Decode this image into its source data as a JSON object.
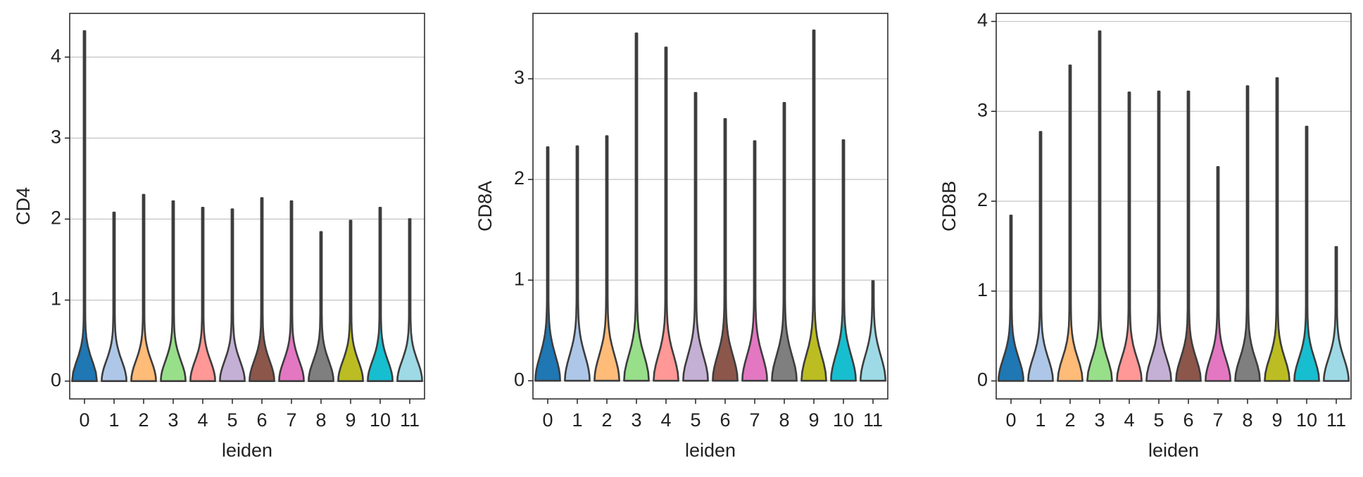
{
  "chart_data": [
    {
      "type": "violin",
      "ylabel": "CD4",
      "xlabel": "leiden",
      "categories": [
        "0",
        "1",
        "2",
        "3",
        "4",
        "5",
        "6",
        "7",
        "8",
        "9",
        "10",
        "11"
      ],
      "values": [
        4.32,
        2.08,
        2.3,
        2.22,
        2.14,
        2.12,
        2.26,
        2.22,
        1.84,
        1.98,
        2.14,
        2.0
      ],
      "colors": [
        "#1f77b4",
        "#aec7e8",
        "#ffbb78",
        "#98df8a",
        "#ff9896",
        "#c5b0d5",
        "#8c564b",
        "#e377c2",
        "#7f7f7f",
        "#bcbd22",
        "#17becf",
        "#9edae5"
      ],
      "ylim": [
        -0.22,
        4.54
      ],
      "yticks": [
        0,
        1,
        2,
        3,
        4
      ],
      "grid": true
    },
    {
      "type": "violin",
      "ylabel": "CD8A",
      "xlabel": "leiden",
      "categories": [
        "0",
        "1",
        "2",
        "3",
        "4",
        "5",
        "6",
        "7",
        "8",
        "9",
        "10",
        "11"
      ],
      "values": [
        2.32,
        2.33,
        2.43,
        3.45,
        3.31,
        2.86,
        2.6,
        2.38,
        2.76,
        3.48,
        2.39,
        0.99
      ],
      "colors": [
        "#1f77b4",
        "#aec7e8",
        "#ffbb78",
        "#98df8a",
        "#ff9896",
        "#c5b0d5",
        "#8c564b",
        "#e377c2",
        "#7f7f7f",
        "#bcbd22",
        "#17becf",
        "#9edae5"
      ],
      "ylim": [
        -0.18,
        3.65
      ],
      "yticks": [
        0,
        1,
        2,
        3
      ],
      "grid": true
    },
    {
      "type": "violin",
      "ylabel": "CD8B",
      "xlabel": "leiden",
      "categories": [
        "0",
        "1",
        "2",
        "3",
        "4",
        "5",
        "6",
        "7",
        "8",
        "9",
        "10",
        "11"
      ],
      "values": [
        1.84,
        2.77,
        3.51,
        3.89,
        3.21,
        3.22,
        3.22,
        2.38,
        3.28,
        3.37,
        2.83,
        1.49
      ],
      "colors": [
        "#1f77b4",
        "#aec7e8",
        "#ffbb78",
        "#98df8a",
        "#ff9896",
        "#c5b0d5",
        "#8c564b",
        "#e377c2",
        "#7f7f7f",
        "#bcbd22",
        "#17becf",
        "#9edae5"
      ],
      "ylim": [
        -0.2,
        4.09
      ],
      "yticks": [
        0,
        1,
        2,
        3,
        4
      ],
      "grid": true
    }
  ]
}
